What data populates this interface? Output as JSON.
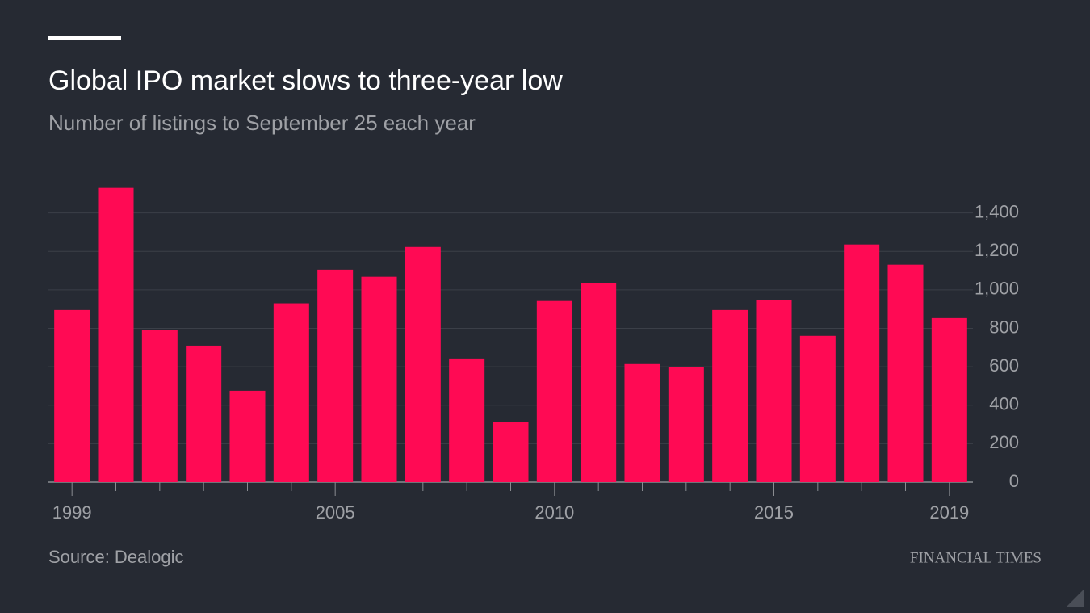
{
  "chart_data": {
    "type": "bar",
    "title": "Global IPO market slows to three-year low",
    "subtitle": "Number of listings to September 25 each year",
    "source": "Source: Dealogic",
    "brand": "FINANCIAL TIMES",
    "categories": [
      "1999",
      null,
      null,
      null,
      null,
      null,
      "2005",
      null,
      null,
      null,
      null,
      "2010",
      null,
      null,
      null,
      null,
      "2015",
      null,
      null,
      null,
      "2019"
    ],
    "values": [
      895,
      1530,
      790,
      710,
      475,
      930,
      1105,
      1068,
      1223,
      643,
      311,
      942,
      1034,
      614,
      597,
      895,
      946,
      761,
      1236,
      1131,
      853
    ],
    "color": "#ff0a54",
    "ylim": [
      0,
      1600
    ],
    "yticks": [
      0,
      200,
      400,
      600,
      800,
      {
        "value": 1000,
        "label": "1,000"
      },
      {
        "value": 1200,
        "label": "1,200"
      },
      {
        "value": 1400,
        "label": "1,400"
      }
    ],
    "grid": true
  }
}
